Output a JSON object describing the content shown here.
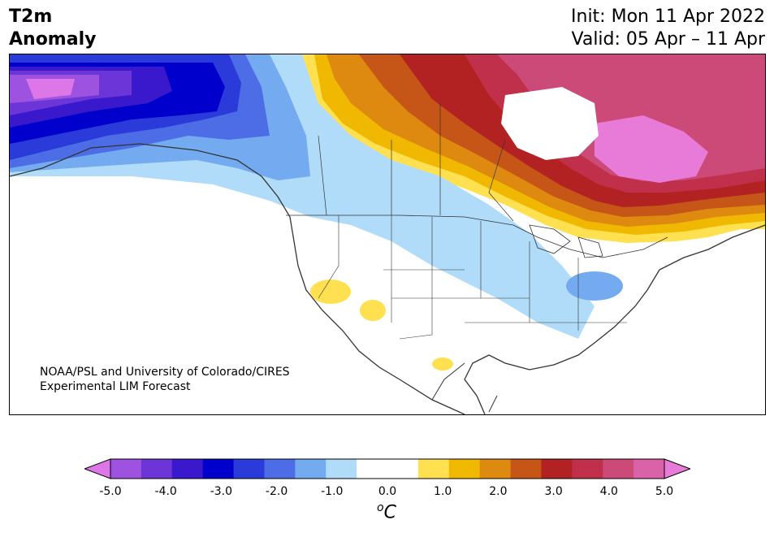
{
  "header": {
    "title_line1": "T2m",
    "title_line2": "Anomaly",
    "init_label": "Init: Mon 11 Apr 2022",
    "valid_label": "Valid: 05 Apr – 11 Apr"
  },
  "credit": {
    "line1": "NOAA/PSL and University of Colorado/CIRES",
    "line2": "Experimental LIM Forecast"
  },
  "colorbar": {
    "unit_symbol": "o",
    "unit_letter": "C",
    "tick_labels": [
      "-5.0",
      "-4.0",
      "-3.0",
      "-2.0",
      "-1.0",
      "0.0",
      "1.0",
      "2.0",
      "3.0",
      "4.0",
      "5.0"
    ],
    "colors": [
      "#dd77e8",
      "#9e52e0",
      "#6b35d8",
      "#3a18cc",
      "#0000cc",
      "#2a3bd9",
      "#4d6de6",
      "#73aaf0",
      "#b0dcf9",
      "#ffffff",
      "#ffffff",
      "#ffe050",
      "#f0b800",
      "#de8a10",
      "#c65518",
      "#b32222",
      "#c0304a",
      "#cc4a78",
      "#d962a8",
      "#e87ad8"
    ]
  },
  "map": {
    "anomaly_colors": {
      "strong_cold": "#0000cc",
      "cold": "#4d6de6",
      "cool": "#73aaf0",
      "slight_cool": "#b0dcf9",
      "slight_warm": "#ffe050",
      "warm": "#f0b800",
      "hot": "#de8a10",
      "very_hot": "#b32222",
      "extreme": "#e87ad8"
    }
  }
}
